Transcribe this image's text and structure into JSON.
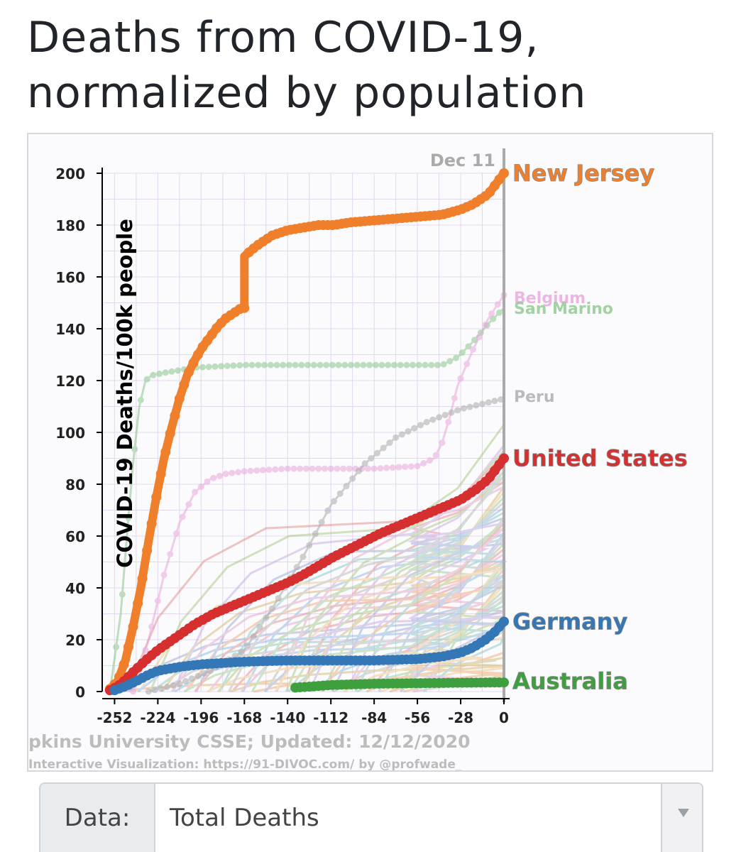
{
  "title_line1": "Deaths from COVID-19,",
  "title_line2": "normalized by population",
  "data_selector": {
    "label": "Data:",
    "value": "Total Deaths"
  },
  "colors": {
    "new_jersey": "#f07f2b",
    "united_states": "#d62f2f",
    "germany": "#3477b6",
    "australia": "#3e9f3e",
    "san_marino": "#8cc88c",
    "belgium": "#e8a5dc",
    "peru": "#aaaaaa"
  },
  "chart_data": {
    "type": "line",
    "ylabel": "COVID-19 Deaths/100k people",
    "xlabel": "",
    "date_label": "Dec 11",
    "source_line": "pkins University CSSE; Updated: 12/12/2020",
    "credit_line": "Interactive Visualization: https://91-DIVOC.com/ by @profwade_",
    "ylim": [
      0,
      200
    ],
    "xlim": [
      -260,
      0
    ],
    "yticks": [
      0,
      20,
      40,
      60,
      80,
      100,
      120,
      140,
      160,
      180,
      200
    ],
    "xticks": [
      -252,
      -224,
      -196,
      -168,
      -140,
      -112,
      -84,
      -56,
      -28,
      0
    ],
    "grid": true,
    "highlighted_series": [
      {
        "name": "New Jersey",
        "key": "new_jersey",
        "label_y": 200,
        "x": [
          -255,
          -250,
          -245,
          -240,
          -235,
          -230,
          -225,
          -220,
          -215,
          -210,
          -205,
          -200,
          -195,
          -190,
          -185,
          -180,
          -175,
          -170,
          -168,
          -168,
          -164,
          -160,
          -155,
          -150,
          -145,
          -140,
          -130,
          -120,
          -110,
          -100,
          -80,
          -60,
          -40,
          -28,
          -20,
          -10,
          -5,
          0
        ],
        "y": [
          1,
          4,
          12,
          25,
          40,
          58,
          75,
          90,
          102,
          113,
          122,
          128,
          133,
          137,
          141,
          144,
          146,
          148,
          148,
          168,
          170,
          172,
          174,
          176,
          177,
          178,
          179,
          180,
          180,
          181,
          182,
          183,
          184,
          186,
          188,
          192,
          196,
          200
        ]
      },
      {
        "name": "United States",
        "key": "united_states",
        "label_y": 90,
        "x": [
          -255,
          -250,
          -245,
          -240,
          -232,
          -224,
          -212,
          -200,
          -188,
          -176,
          -168,
          -160,
          -150,
          -140,
          -130,
          -120,
          -110,
          -100,
          -90,
          -80,
          -70,
          -56,
          -40,
          -28,
          -18,
          -10,
          -5,
          0
        ],
        "y": [
          0.5,
          2,
          4.5,
          7.5,
          12,
          16,
          21,
          26,
          30,
          33,
          35,
          37,
          39.5,
          42,
          45,
          48.5,
          52,
          55,
          58,
          61,
          63.5,
          67,
          71,
          74,
          78,
          82,
          86,
          90
        ]
      },
      {
        "name": "Germany",
        "key": "germany",
        "label_y": 27,
        "x": [
          -252,
          -245,
          -238,
          -230,
          -224,
          -210,
          -196,
          -168,
          -140,
          -112,
          -84,
          -56,
          -40,
          -28,
          -20,
          -12,
          -6,
          0
        ],
        "y": [
          0.5,
          2,
          4,
          6.5,
          8,
          9.5,
          10.5,
          11.5,
          12,
          12,
          12,
          12.5,
          13.5,
          15,
          17,
          20,
          23,
          27
        ]
      },
      {
        "name": "Australia",
        "key": "australia",
        "label_y": 4,
        "x": [
          -135,
          -112,
          -84,
          -56,
          -28,
          0
        ],
        "y": [
          1.5,
          2.5,
          3,
          3.2,
          3.4,
          3.5
        ]
      }
    ],
    "faded_labels": [
      {
        "name": "Belgium",
        "key": "belgium",
        "y": 152
      },
      {
        "name": "San Marino",
        "key": "san_marino",
        "y": 148
      },
      {
        "name": "Peru",
        "key": "peru",
        "y": 114
      }
    ],
    "background_series": [
      {
        "name": "San Marino",
        "key": "san_marino",
        "x": [
          -255,
          -248,
          -244,
          -240,
          -236,
          -232,
          -228,
          -220,
          -200,
          -168,
          -112,
          -56,
          -40,
          -30,
          -20,
          -10,
          0
        ],
        "y": [
          0,
          30,
          60,
          88,
          110,
          120,
          122,
          123,
          125,
          126,
          126,
          126,
          126,
          129,
          135,
          142,
          148
        ]
      },
      {
        "name": "Belgium",
        "key": "belgium",
        "x": [
          -240,
          -230,
          -220,
          -210,
          -200,
          -190,
          -180,
          -168,
          -140,
          -112,
          -84,
          -56,
          -45,
          -40,
          -35,
          -30,
          -20,
          -10,
          0
        ],
        "y": [
          0,
          20,
          45,
          65,
          77,
          82,
          84,
          85,
          86,
          86,
          86,
          87,
          90,
          96,
          106,
          118,
          132,
          144,
          153
        ]
      },
      {
        "name": "Peru",
        "key": "peru",
        "x": [
          -230,
          -210,
          -190,
          -168,
          -150,
          -130,
          -112,
          -90,
          -70,
          -50,
          -28,
          0
        ],
        "y": [
          0,
          3,
          8,
          16,
          32,
          52,
          72,
          88,
          98,
          104,
          109,
          113
        ]
      }
    ]
  }
}
